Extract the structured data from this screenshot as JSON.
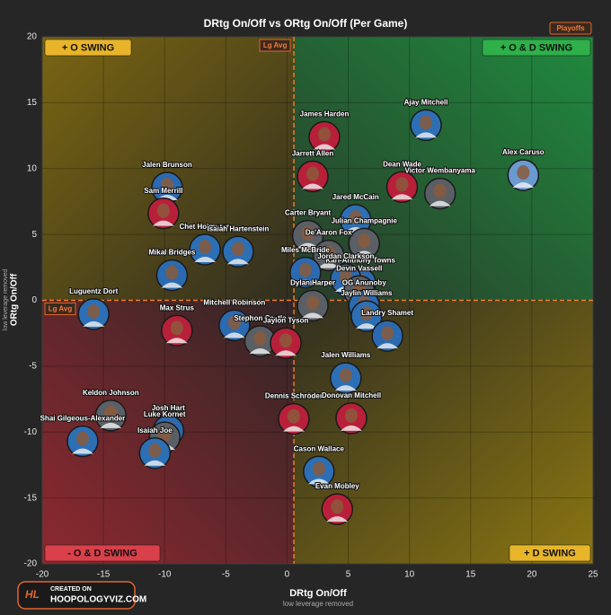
{
  "chart_data": {
    "type": "scatter",
    "title": "DRtg On/Off vs ORtg On/Off (Per Game)",
    "badge": "Playoffs",
    "x_label": "DRtg On/Off",
    "x_sublabel": "low leverage removed",
    "y_label": "ORtg On/Off",
    "y_sublabel": "low leverage removed",
    "quadrant_labels": {
      "top_left": "+ O SWING",
      "top_right": "+ O & D SWING",
      "bottom_left": "- O & D SWING",
      "bottom_right": "+ D SWING"
    },
    "avg_label": "Lg Avg",
    "avg_x": 0.56,
    "avg_y": 0,
    "credit": [
      "CREATED ON",
      "HOOPOLOGYVIZ.COM"
    ],
    "xlim": [
      -20,
      25
    ],
    "xticks": [
      -20,
      -15,
      -10,
      -5,
      0,
      5,
      10,
      15,
      20,
      25
    ],
    "ylim": [
      -20,
      20
    ],
    "yticks": [
      -20,
      -15,
      -10,
      -5,
      0,
      5,
      10,
      15,
      20
    ],
    "grid": true,
    "labels": [
      "Ajay Mitchell",
      "James Harden",
      "Alex Caruso",
      "Jalen Brunson",
      "Jarrett Allen",
      "Dean Wade",
      "Victor Wembanyama",
      "Sam Merrill",
      "Jared McCain",
      "Carter Bryant",
      "Julian Champagnie",
      "Chet Holmgren",
      "Isaiah Hartenstein",
      "De'Aaron Fox",
      "Karl-Anthony Towns",
      "Miles McBride",
      "Mikal Bridges",
      "Jordan Clarkson",
      "Dylan Harper",
      "Devin Vassell",
      "OG Anunoby",
      "Luguentz Dort",
      "Jaylin Williams",
      "Mitchell Robinson",
      "Max Strus",
      "Landry Shamet",
      "Stephon Castle",
      "Jaylon Tyson",
      "Jalen Williams",
      "Keldon Johnson",
      "Josh Hart",
      "Dennis Schröder",
      "Donovan Mitchell",
      "Shai Gilgeous-Alexander",
      "Luke Kornet",
      "Isaiah Joe",
      "Cason Wallace",
      "Evan Mobley"
    ],
    "x": [
      11.35,
      3.05,
      19.3,
      -9.8,
      2.1,
      9.4,
      12.5,
      -10.1,
      5.6,
      1.7,
      6.3,
      -6.7,
      -4.0,
      3.4,
      6.0,
      1.5,
      -9.4,
      4.8,
      2.1,
      5.9,
      6.3,
      -15.8,
      6.5,
      -4.3,
      -9.0,
      8.2,
      -2.2,
      -0.1,
      4.8,
      -14.4,
      -9.7,
      0.55,
      5.25,
      -16.7,
      -10.0,
      -10.8,
      2.6,
      4.1
    ],
    "values": [
      13.3,
      12.4,
      9.5,
      8.55,
      9.4,
      8.6,
      8.1,
      6.6,
      6.1,
      4.9,
      4.3,
      3.85,
      3.7,
      3.4,
      1.3,
      2.1,
      1.9,
      1.6,
      -0.4,
      0.7,
      -0.4,
      -1.05,
      -1.2,
      -1.9,
      -2.3,
      -2.7,
      -3.1,
      -3.25,
      -5.9,
      -8.75,
      -9.9,
      -9.0,
      -8.95,
      -10.7,
      -10.4,
      -11.6,
      -13.0,
      -15.85
    ],
    "colors": [
      "#2c6fb5",
      "#b8203a",
      "#6a9ad0",
      "#2b6ab0",
      "#b8203a",
      "#b8203a",
      "#5a5f66",
      "#b8203a",
      "#2c6fb5",
      "#5a5f66",
      "#5a5f66",
      "#2c6fb5",
      "#2c6fb5",
      "#5a5f66",
      "#2b6ab0",
      "#2b6ab0",
      "#2b6ab0",
      "#2b6ab0",
      "#5a5f66",
      "#5a5f66",
      "#2b6ab0",
      "#2c6fb5",
      "#2c6fb5",
      "#2b6ab0",
      "#b8203a",
      "#2b6ab0",
      "#5a5f66",
      "#b8203a",
      "#2c6fb5",
      "#5a5f66",
      "#2b6ab0",
      "#b8203a",
      "#b8203a",
      "#2c6fb5",
      "#5a5f66",
      "#2c6fb5",
      "#2c6fb5",
      "#b8203a"
    ]
  }
}
